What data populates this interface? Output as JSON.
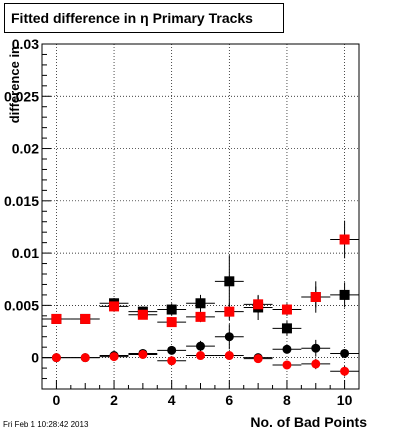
{
  "chart_data": {
    "type": "scatter",
    "title": "Fitted difference in  η Primary Tracks",
    "xlabel": "No. of Bad Points",
    "ylabel": "difference in",
    "xlim": [
      -0.5,
      10.5
    ],
    "ylim": [
      -0.003,
      0.03
    ],
    "xticks": [
      0,
      2,
      4,
      6,
      8,
      10
    ],
    "yticks": [
      0,
      0.005,
      0.01,
      0.015,
      0.02,
      0.025,
      0.03
    ],
    "ytick_labels": [
      "0",
      "0.005",
      "0.01",
      "0.015",
      "0.02",
      "0.025",
      "0.03"
    ],
    "grid": true,
    "series": [
      {
        "marker": "square",
        "color": "#000000",
        "x": [
          0,
          1,
          2,
          3,
          4,
          5,
          6,
          7,
          8,
          9,
          10
        ],
        "y": [
          0.0037,
          0.0037,
          0.0052,
          0.0044,
          0.0046,
          0.0052,
          0.0073,
          0.0048,
          0.0028,
          0.0058,
          0.006
        ],
        "yerr": [
          0.0003,
          0.0003,
          0.0005,
          0.0005,
          0.0006,
          0.0008,
          0.0025,
          0.0012,
          0.0007,
          0.0015,
          0.0012
        ]
      },
      {
        "marker": "square",
        "color": "#ff0000",
        "x": [
          0,
          1,
          2,
          3,
          4,
          5,
          6,
          7,
          8,
          9,
          10
        ],
        "y": [
          0.0037,
          0.0037,
          0.0049,
          0.0041,
          0.0034,
          0.0039,
          0.0044,
          0.0051,
          0.0046,
          0.0058,
          0.0113
        ],
        "yerr": [
          0.0003,
          0.0003,
          0.0004,
          0.0004,
          0.0004,
          0.0005,
          0.0008,
          0.0008,
          0.0006,
          0.001,
          0.0018
        ]
      },
      {
        "marker": "circle",
        "color": "#000000",
        "x": [
          0,
          1,
          2,
          3,
          4,
          5,
          6,
          7,
          8,
          9,
          10
        ],
        "y": [
          0.0,
          0.0,
          0.0002,
          0.0004,
          0.0007,
          0.0011,
          0.002,
          0.0,
          0.0008,
          0.0009,
          0.0004
        ],
        "yerr": [
          0.0002,
          0.0002,
          0.0002,
          0.0003,
          0.0003,
          0.0005,
          0.0012,
          0.0004,
          0.0004,
          0.0008,
          0.0004
        ]
      },
      {
        "marker": "circle",
        "color": "#ff0000",
        "x": [
          0,
          1,
          2,
          3,
          4,
          5,
          6,
          7,
          8,
          9,
          10
        ],
        "y": [
          0.0,
          0.0,
          0.0001,
          0.0003,
          -0.0003,
          0.0002,
          0.0002,
          -0.0001,
          -0.0007,
          -0.0006,
          -0.0013
        ],
        "yerr": [
          0.0002,
          0.0002,
          0.0002,
          0.0002,
          0.0003,
          0.0003,
          0.0004,
          0.0004,
          0.0004,
          0.0005,
          0.0005
        ]
      }
    ]
  },
  "timestamp": "Fri Feb  1 10:28:42 2013"
}
